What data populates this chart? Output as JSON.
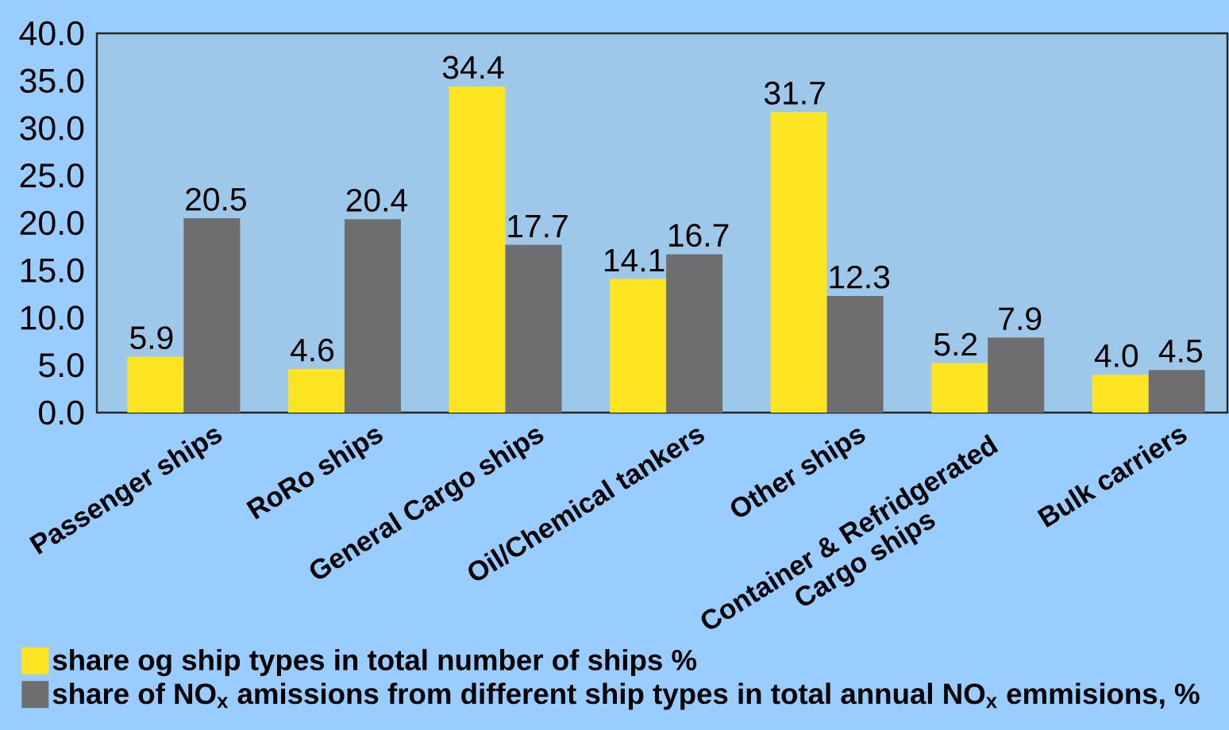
{
  "chart_data": {
    "type": "bar",
    "categories": [
      "Passenger ships",
      "RoRo ships",
      "General Cargo ships",
      "Oil/Chemical tankers",
      "Other ships",
      "Container & Refridgerated Cargo ships",
      "Bulk carriers"
    ],
    "series": [
      {
        "name": "share og ship types in total number of ships %",
        "color": "#fce423",
        "values": [
          5.9,
          4.6,
          34.4,
          14.1,
          31.7,
          5.2,
          4.0
        ],
        "value_labels": [
          "5.9",
          "4.6",
          "34.4",
          "14.1",
          "31.7",
          "5.2",
          "4.0"
        ]
      },
      {
        "name": "share of NO$_{x}$ amissions from different ship types in total annual NO$_{x}$ emmisions, %",
        "color": "#6e6e70",
        "values": [
          20.5,
          20.4,
          17.7,
          16.7,
          12.3,
          7.9,
          4.5
        ],
        "value_labels": [
          "20.5",
          "20.4",
          "17.7",
          "16.7",
          "12.3",
          "7.9",
          "4.5"
        ]
      }
    ],
    "ylim": [
      0,
      40
    ],
    "yticks": [
      {
        "value": 0,
        "label": "0.0"
      },
      {
        "value": 5,
        "label": "5.0"
      },
      {
        "value": 10,
        "label": "10.0"
      },
      {
        "value": 15,
        "label": "15.0"
      },
      {
        "value": 20,
        "label": "20.0"
      },
      {
        "value": 25,
        "label": "25.0"
      },
      {
        "value": 30,
        "label": "30.0"
      },
      {
        "value": 35,
        "label": "35.0"
      },
      {
        "value": 40,
        "label": "40.0"
      }
    ],
    "legend": "bottom left"
  }
}
